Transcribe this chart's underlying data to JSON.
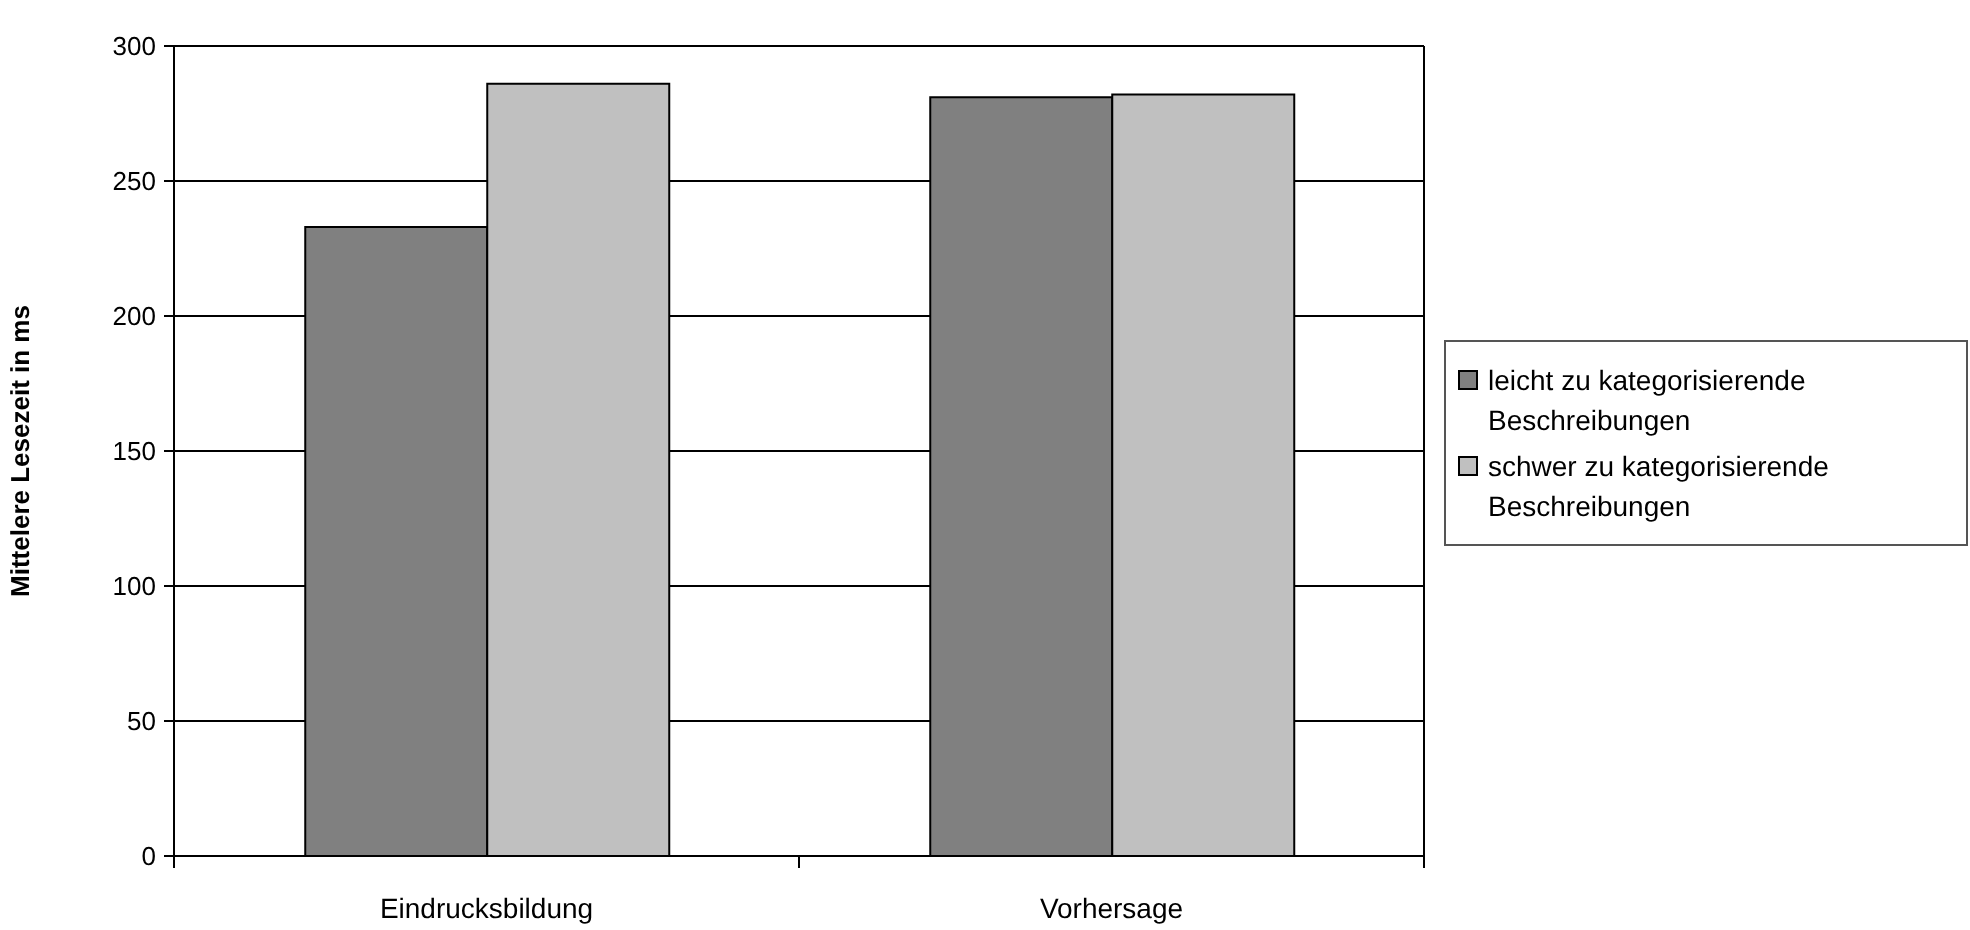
{
  "chart_data": {
    "type": "bar",
    "ylabel": "Mittelere Lesezeit in ms",
    "categories": [
      "Eindrucksbildung",
      "Vorhersage"
    ],
    "series": [
      {
        "name": "leicht zu kategorisierende Beschreibungen",
        "color": "#808080",
        "values": [
          233,
          281
        ]
      },
      {
        "name": "schwer zu kategorisierende Beschreibungen",
        "color": "#c0c0c0",
        "values": [
          286,
          282
        ]
      }
    ],
    "ylim": [
      0,
      300
    ],
    "yticks": [
      0,
      50,
      100,
      150,
      200,
      250,
      300
    ],
    "grid": "y",
    "legend": "right"
  }
}
